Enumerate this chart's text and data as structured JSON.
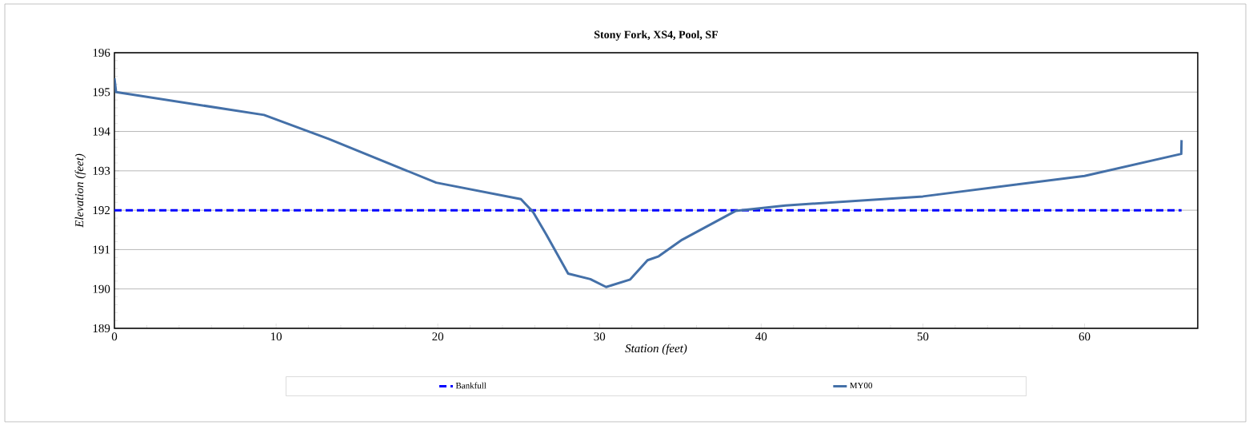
{
  "chart_data": {
    "type": "line",
    "title": "Stony Fork, XS4, Pool, SF",
    "xlabel": "Station (feet)",
    "ylabel": "Elevation (feet)",
    "xlim": [
      0,
      67
    ],
    "xticks": [
      0,
      10,
      20,
      30,
      40,
      50,
      60
    ],
    "ylim": [
      189,
      196
    ],
    "yticks": [
      189,
      190,
      191,
      192,
      193,
      194,
      195,
      196
    ],
    "grid": "y",
    "legend": "bottom",
    "marker": "none",
    "series": [
      {
        "name": "Bankfull",
        "color": "#0000ff",
        "line_style": "dashed",
        "x": [
          0,
          66
        ],
        "values": [
          192,
          192
        ]
      },
      {
        "name": "MY00",
        "color": "#4470a8",
        "line_style": "solid",
        "x": [
          0,
          0.1,
          9.25,
          13.25,
          19.9,
          25.14,
          25.88,
          26.7,
          28.06,
          29.43,
          30.41,
          31.9,
          32.97,
          33.66,
          35.11,
          38.41,
          41.5,
          50,
          60,
          65.98,
          66.0
        ],
        "values": [
          195.35,
          195.0,
          194.42,
          193.81,
          192.7,
          192.28,
          191.96,
          191.39,
          190.39,
          190.25,
          190.05,
          190.24,
          190.73,
          190.83,
          191.25,
          191.98,
          192.12,
          192.35,
          192.87,
          193.43,
          193.78
        ]
      }
    ]
  }
}
